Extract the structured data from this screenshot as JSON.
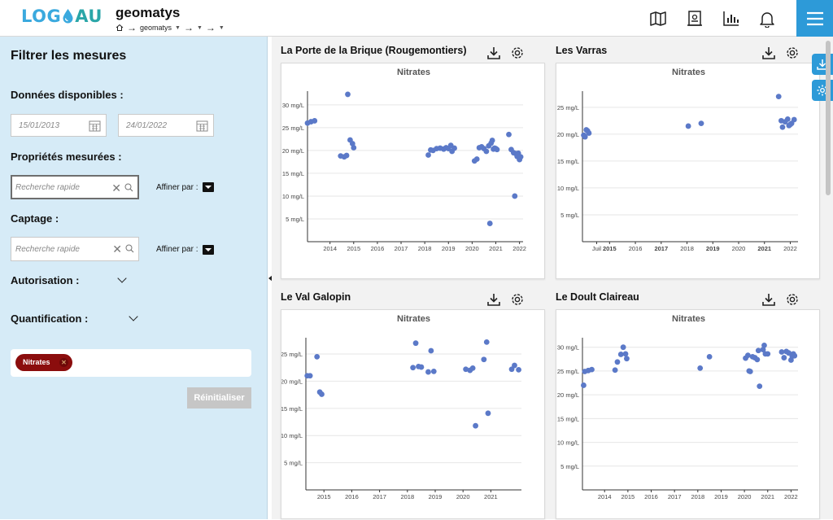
{
  "header": {
    "logo_left": "LOG",
    "logo_right": "AU",
    "title": "geomatys",
    "breadcrumb": {
      "root": "geomatys"
    },
    "icons": [
      "map-icon",
      "document-icon",
      "chart-icon",
      "bell-icon",
      "hamburger-menu-icon"
    ]
  },
  "sidebar": {
    "title": "Filtrer les mesures",
    "available_label": "Données disponibles :",
    "date_start": "15/01/2013",
    "date_end": "24/01/2022",
    "properties_label": "Propriétés mesurées :",
    "properties_search_placeholder": "Recherche rapide",
    "properties_refine": "Affiner par :",
    "captage_label": "Captage :",
    "captage_search_placeholder": "Recherche rapide",
    "captage_refine": "Affiner par :",
    "autorisation_label": "Autorisation :",
    "quantification_label": "Quantification :",
    "selected_tag": "Nitrates",
    "reset_label": "Réinitialiser"
  },
  "colors": {
    "accent": "#2d9ad8",
    "sidebar_bg": "#d6ebf7",
    "dot": "#5b79c8",
    "tag": "#8b0d0d"
  },
  "panels": [
    {
      "title": "La Porte de la Brique (Rougemontiers)"
    },
    {
      "title": "Les Varras"
    },
    {
      "title": "Le Val Galopin"
    },
    {
      "title": "Le Doult Claireau"
    }
  ],
  "chart_data": [
    {
      "type": "scatter",
      "title": "Nitrates",
      "y_ticks": [
        "5 mg/L",
        "10 mg/L",
        "15 mg/L",
        "20 mg/L",
        "25 mg/L",
        "30 mg/L"
      ],
      "y_tick_values": [
        5,
        10,
        15,
        20,
        25,
        30
      ],
      "x_ticks": [
        "2014",
        "2015",
        "2016",
        "2017",
        "2018",
        "2019",
        "2020",
        "2021",
        "2022"
      ],
      "x_tick_values": [
        2014,
        2015,
        2016,
        2017,
        2018,
        2019,
        2020,
        2021,
        2022
      ],
      "xlim": [
        2013.05,
        2022.15
      ],
      "ylim": [
        0,
        33
      ],
      "points": [
        [
          2013.05,
          26.0
        ],
        [
          2013.2,
          26.3
        ],
        [
          2013.35,
          26.5
        ],
        [
          2014.45,
          18.8
        ],
        [
          2014.6,
          18.6
        ],
        [
          2014.7,
          18.9
        ],
        [
          2014.75,
          32.3
        ],
        [
          2014.85,
          22.3
        ],
        [
          2014.95,
          21.5
        ],
        [
          2015.0,
          20.6
        ],
        [
          2018.15,
          19.0
        ],
        [
          2018.25,
          20.1
        ],
        [
          2018.35,
          20.0
        ],
        [
          2018.5,
          20.4
        ],
        [
          2018.65,
          20.5
        ],
        [
          2018.8,
          20.3
        ],
        [
          2018.9,
          20.6
        ],
        [
          2019.0,
          20.4
        ],
        [
          2019.1,
          21.1
        ],
        [
          2019.15,
          19.8
        ],
        [
          2019.25,
          20.5
        ],
        [
          2020.1,
          17.7
        ],
        [
          2020.2,
          18.1
        ],
        [
          2020.3,
          20.6
        ],
        [
          2020.4,
          20.8
        ],
        [
          2020.5,
          20.4
        ],
        [
          2020.6,
          19.8
        ],
        [
          2020.7,
          21.0
        ],
        [
          2020.75,
          4.0
        ],
        [
          2020.8,
          21.6
        ],
        [
          2020.85,
          22.2
        ],
        [
          2020.9,
          20.3
        ],
        [
          2020.95,
          20.5
        ],
        [
          2021.0,
          20.4
        ],
        [
          2021.05,
          20.2
        ],
        [
          2021.55,
          23.5
        ],
        [
          2021.65,
          20.2
        ],
        [
          2021.75,
          19.5
        ],
        [
          2021.8,
          10.0
        ],
        [
          2021.85,
          19.3
        ],
        [
          2021.9,
          18.7
        ],
        [
          2021.95,
          19.4
        ],
        [
          2022.0,
          18.0
        ],
        [
          2022.05,
          18.6
        ]
      ]
    },
    {
      "type": "scatter",
      "title": "Nitrates",
      "y_ticks": [
        "5 mg/L",
        "10 mg/L",
        "15 mg/L",
        "20 mg/L",
        "25 mg/L"
      ],
      "y_tick_values": [
        5,
        10,
        15,
        20,
        25
      ],
      "x_ticks": [
        "Juil",
        "2015",
        "2016",
        "2017",
        "2018",
        "2019",
        "2020",
        "2021",
        "2022"
      ],
      "x_tick_values": [
        2014.5,
        2015,
        2016,
        2017,
        2018,
        2019,
        2020,
        2021,
        2022
      ],
      "bold_ticks": [
        "2015",
        "2017",
        "2019",
        "2021"
      ],
      "xlim": [
        2013.95,
        2022.3
      ],
      "ylim": [
        0,
        28
      ],
      "points": [
        [
          2014.0,
          19.8
        ],
        [
          2014.05,
          19.5
        ],
        [
          2014.1,
          20.8
        ],
        [
          2014.15,
          20.6
        ],
        [
          2014.2,
          20.2
        ],
        [
          2018.05,
          21.5
        ],
        [
          2018.55,
          22.0
        ],
        [
          2021.55,
          27.0
        ],
        [
          2021.65,
          22.5
        ],
        [
          2021.7,
          21.3
        ],
        [
          2021.8,
          22.3
        ],
        [
          2021.9,
          22.8
        ],
        [
          2021.95,
          21.6
        ],
        [
          2022.05,
          22.0
        ],
        [
          2022.15,
          22.7
        ],
        [
          2022.0,
          21.8
        ]
      ]
    },
    {
      "type": "scatter",
      "title": "Nitrates",
      "y_ticks": [
        "5 mg/L",
        "10 mg/L",
        "15 mg/L",
        "20 mg/L",
        "25 mg/L"
      ],
      "y_tick_values": [
        5,
        10,
        15,
        20,
        25
      ],
      "x_ticks": [
        "2015",
        "2016",
        "2017",
        "2018",
        "2019",
        "2020",
        "2021"
      ],
      "x_tick_values": [
        2015,
        2016,
        2017,
        2018,
        2019,
        2020,
        2021
      ],
      "xlim": [
        2014.35,
        2022.1
      ],
      "ylim": [
        0,
        28
      ],
      "points": [
        [
          2014.4,
          21.0
        ],
        [
          2014.5,
          21.0
        ],
        [
          2014.75,
          24.5
        ],
        [
          2014.85,
          18.0
        ],
        [
          2014.92,
          17.6
        ],
        [
          2018.2,
          22.5
        ],
        [
          2018.3,
          27.0
        ],
        [
          2018.4,
          22.7
        ],
        [
          2018.5,
          22.6
        ],
        [
          2018.75,
          21.7
        ],
        [
          2018.85,
          25.6
        ],
        [
          2018.95,
          21.8
        ],
        [
          2020.1,
          22.2
        ],
        [
          2020.25,
          22.0
        ],
        [
          2020.35,
          22.4
        ],
        [
          2020.45,
          11.8
        ],
        [
          2020.75,
          24.0
        ],
        [
          2020.85,
          27.2
        ],
        [
          2020.9,
          14.1
        ],
        [
          2021.75,
          22.2
        ],
        [
          2021.85,
          22.9
        ],
        [
          2022.0,
          22.1
        ]
      ]
    },
    {
      "type": "scatter",
      "title": "Nitrates",
      "y_ticks": [
        "5 mg/L",
        "10 mg/L",
        "15 mg/L",
        "20 mg/L",
        "25 mg/L",
        "30 mg/L"
      ],
      "y_tick_values": [
        5,
        10,
        15,
        20,
        25,
        30
      ],
      "x_ticks": [
        "2014",
        "2015",
        "2016",
        "2017",
        "2018",
        "2019",
        "2020",
        "2021",
        "2022"
      ],
      "x_tick_values": [
        2014,
        2015,
        2016,
        2017,
        2018,
        2019,
        2020,
        2021,
        2022
      ],
      "xlim": [
        2013.05,
        2022.3
      ],
      "ylim": [
        0,
        32
      ],
      "points": [
        [
          2013.1,
          22.0
        ],
        [
          2013.15,
          24.9
        ],
        [
          2013.3,
          25.1
        ],
        [
          2013.45,
          25.3
        ],
        [
          2014.45,
          25.2
        ],
        [
          2014.55,
          26.9
        ],
        [
          2014.7,
          28.5
        ],
        [
          2014.8,
          30.0
        ],
        [
          2014.9,
          28.6
        ],
        [
          2014.95,
          27.6
        ],
        [
          2018.1,
          25.6
        ],
        [
          2018.5,
          28.0
        ],
        [
          2020.05,
          27.7
        ],
        [
          2020.15,
          28.3
        ],
        [
          2020.2,
          25.0
        ],
        [
          2020.25,
          24.9
        ],
        [
          2020.35,
          28.0
        ],
        [
          2020.45,
          27.8
        ],
        [
          2020.55,
          27.4
        ],
        [
          2020.6,
          29.3
        ],
        [
          2020.65,
          21.8
        ],
        [
          2020.8,
          29.5
        ],
        [
          2020.85,
          30.4
        ],
        [
          2020.9,
          28.6
        ],
        [
          2021.0,
          28.6
        ],
        [
          2021.6,
          29.0
        ],
        [
          2021.7,
          27.8
        ],
        [
          2021.8,
          29.1
        ],
        [
          2021.9,
          28.8
        ],
        [
          2022.0,
          27.3
        ],
        [
          2022.05,
          28.1
        ],
        [
          2022.1,
          28.6
        ],
        [
          2022.15,
          28.2
        ]
      ]
    }
  ]
}
